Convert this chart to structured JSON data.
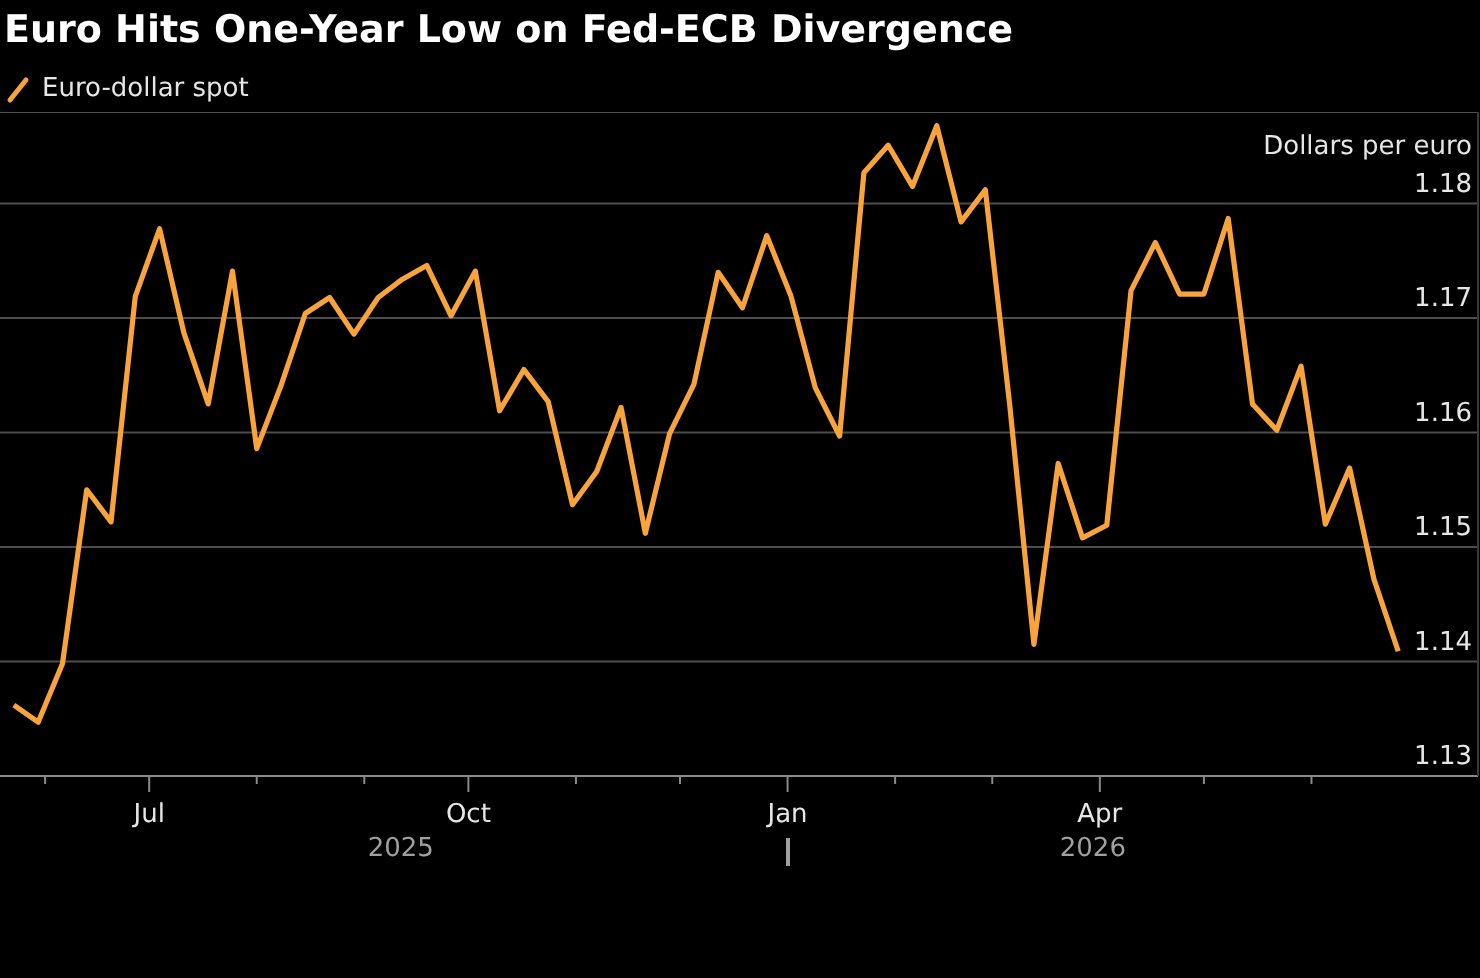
{
  "chart_data": {
    "type": "line",
    "title": "Euro Hits One-Year Low on Fed-ECB Divergence",
    "ylabel": "Dollars per euro",
    "x": [
      "2025-05-23",
      "2025-05-30",
      "2025-06-06",
      "2025-06-13",
      "2025-06-20",
      "2025-06-27",
      "2025-07-04",
      "2025-07-11",
      "2025-07-18",
      "2025-07-25",
      "2025-08-01",
      "2025-08-08",
      "2025-08-15",
      "2025-08-22",
      "2025-08-29",
      "2025-09-05",
      "2025-09-12",
      "2025-09-19",
      "2025-09-26",
      "2025-10-03",
      "2025-10-10",
      "2025-10-17",
      "2025-10-24",
      "2025-10-31",
      "2025-11-07",
      "2025-11-14",
      "2025-11-21",
      "2025-11-28",
      "2025-12-05",
      "2025-12-12",
      "2025-12-19",
      "2025-12-26",
      "2026-01-02",
      "2026-01-09",
      "2026-01-16",
      "2026-01-23",
      "2026-01-30",
      "2026-02-06",
      "2026-02-13",
      "2026-02-20",
      "2026-02-27",
      "2026-03-06",
      "2026-03-13",
      "2026-03-20",
      "2026-03-27",
      "2026-04-03",
      "2026-04-10",
      "2026-04-17",
      "2026-04-24",
      "2026-05-01",
      "2026-05-08",
      "2026-05-15",
      "2026-05-22",
      "2026-05-29",
      "2026-06-05",
      "2026-06-12",
      "2026-06-19",
      "2026-06-26"
    ],
    "series": [
      {
        "name": "Euro-dollar spot",
        "color": "#f9a43a",
        "values": [
          1.1362,
          1.1347,
          1.1398,
          1.155,
          1.1522,
          1.1719,
          1.1778,
          1.1687,
          1.1625,
          1.1741,
          1.1586,
          1.1641,
          1.1704,
          1.1718,
          1.1686,
          1.1718,
          1.1734,
          1.1746,
          1.1702,
          1.1741,
          1.1619,
          1.1655,
          1.1627,
          1.1537,
          1.1566,
          1.1622,
          1.1512,
          1.1599,
          1.1642,
          1.174,
          1.1709,
          1.1772,
          1.1719,
          1.1639,
          1.1597,
          1.1827,
          1.1851,
          1.1815,
          1.1868,
          1.1784,
          1.1812,
          1.1625,
          1.1415,
          1.1573,
          1.1508,
          1.1519,
          1.1724,
          1.1766,
          1.1721,
          1.1721,
          1.1787,
          1.1625,
          1.1602,
          1.1658,
          1.152,
          1.1569,
          1.1472,
          1.1409
        ]
      }
    ],
    "xlim": [
      "2025-05-19",
      "2026-07-19"
    ],
    "xticks": [
      {
        "value": "2025-06-01",
        "label": null
      },
      {
        "value": "2025-07-01",
        "label": "Jul"
      },
      {
        "value": "2025-08-01",
        "label": null
      },
      {
        "value": "2025-09-01",
        "label": null
      },
      {
        "value": "2025-10-01",
        "label": "Oct"
      },
      {
        "value": "2025-11-01",
        "label": null
      },
      {
        "value": "2025-12-01",
        "label": null
      },
      {
        "value": "2026-01-01",
        "label": "Jan"
      },
      {
        "value": "2026-02-01",
        "label": null
      },
      {
        "value": "2026-03-01",
        "label": null
      },
      {
        "value": "2026-04-01",
        "label": "Apr"
      },
      {
        "value": "2026-05-01",
        "label": null
      },
      {
        "value": "2026-06-01",
        "label": null
      }
    ],
    "ylim": [
      1.13,
      1.188
    ],
    "yticks": [
      1.13,
      1.14,
      1.15,
      1.16,
      1.17,
      1.18
    ],
    "grid": "y",
    "legend": "top left",
    "annotations": [
      "2025",
      "2026"
    ]
  }
}
